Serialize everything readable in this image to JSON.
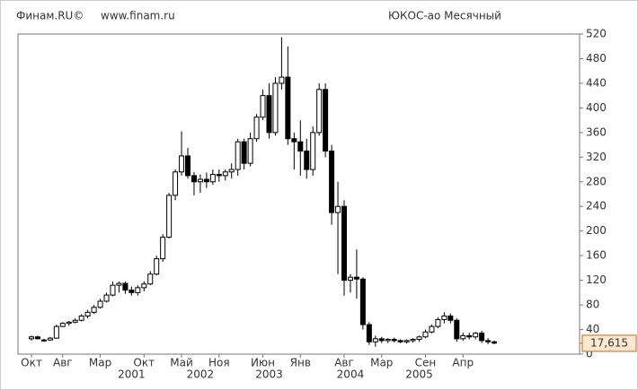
{
  "chart_data": {
    "type": "candlestick",
    "source": "Финам.RU©",
    "url": "www.finam.ru",
    "title": "ЮКОС-ао Месячный",
    "categories": [
      "Окт",
      null,
      null,
      null,
      null,
      "Авг",
      null,
      null,
      null,
      null,
      null,
      "Мар",
      null,
      null,
      null,
      null,
      null,
      null,
      "Окт",
      null,
      null,
      null,
      null,
      null,
      "Май",
      null,
      null,
      null,
      null,
      null,
      "Ноя",
      null,
      null,
      null,
      null,
      null,
      null,
      "Июн",
      null,
      null,
      null,
      null,
      null,
      "Янв",
      null,
      null,
      null,
      null,
      null,
      null,
      "Авг",
      null,
      null,
      null,
      null,
      null,
      "Мар",
      null,
      null,
      null,
      null,
      null,
      null,
      "Сен",
      null,
      null,
      null,
      null,
      null,
      "Апр",
      null,
      null,
      null,
      null,
      null
    ],
    "years": [
      null,
      null,
      null,
      null,
      null,
      null,
      null,
      null,
      null,
      null,
      null,
      null,
      null,
      null,
      null,
      null,
      "2001",
      null,
      null,
      null,
      null,
      null,
      null,
      null,
      null,
      null,
      null,
      "2002",
      null,
      null,
      null,
      null,
      null,
      null,
      null,
      null,
      null,
      null,
      "2003",
      null,
      null,
      null,
      null,
      null,
      null,
      null,
      null,
      null,
      null,
      null,
      null,
      "2004",
      null,
      null,
      null,
      null,
      null,
      null,
      null,
      null,
      null,
      null,
      "2005",
      null,
      null,
      null,
      null,
      null,
      null,
      null,
      null,
      null,
      null,
      null,
      null,
      null
    ],
    "open": [
      25,
      28,
      22,
      23,
      26,
      45,
      50,
      52,
      55,
      62,
      68,
      76,
      86,
      96,
      112,
      115,
      104,
      100,
      108,
      114,
      130,
      155,
      190,
      258,
      296,
      322,
      290,
      280,
      284,
      280,
      292,
      290,
      296,
      300,
      345,
      310,
      350,
      385,
      420,
      360,
      440,
      450,
      350,
      345,
      330,
      300,
      360,
      430,
      330,
      230,
      240,
      120,
      125,
      122,
      48,
      20,
      25,
      22,
      24,
      22,
      20,
      22,
      24,
      28,
      36,
      45,
      56,
      62,
      55,
      25,
      30,
      28,
      34,
      22,
      20
    ],
    "high": [
      30,
      30,
      25,
      28,
      48,
      52,
      54,
      58,
      65,
      72,
      80,
      90,
      100,
      118,
      118,
      118,
      110,
      112,
      118,
      135,
      160,
      195,
      262,
      300,
      362,
      335,
      296,
      292,
      295,
      300,
      300,
      300,
      310,
      350,
      350,
      360,
      390,
      430,
      440,
      450,
      515,
      500,
      360,
      380,
      350,
      370,
      440,
      440,
      340,
      280,
      250,
      130,
      170,
      125,
      52,
      30,
      28,
      26,
      27,
      24,
      24,
      26,
      30,
      40,
      48,
      60,
      68,
      66,
      58,
      35,
      35,
      36,
      38,
      26,
      22
    ],
    "low": [
      22,
      24,
      20,
      22,
      25,
      44,
      46,
      50,
      53,
      58,
      65,
      74,
      84,
      94,
      100,
      98,
      95,
      95,
      102,
      112,
      128,
      150,
      188,
      250,
      290,
      285,
      258,
      262,
      270,
      275,
      280,
      282,
      285,
      290,
      300,
      305,
      345,
      380,
      350,
      355,
      430,
      340,
      300,
      290,
      285,
      290,
      355,
      320,
      210,
      130,
      95,
      100,
      90,
      40,
      15,
      12,
      18,
      18,
      19,
      18,
      17,
      19,
      20,
      26,
      34,
      42,
      50,
      50,
      20,
      22,
      24,
      24,
      18,
      16,
      16
    ],
    "close": [
      28,
      25,
      23,
      26,
      45,
      50,
      52,
      55,
      62,
      68,
      76,
      86,
      96,
      112,
      115,
      104,
      100,
      108,
      114,
      130,
      155,
      190,
      258,
      296,
      322,
      290,
      280,
      284,
      280,
      292,
      290,
      296,
      300,
      345,
      310,
      350,
      385,
      420,
      360,
      440,
      450,
      350,
      345,
      330,
      300,
      360,
      430,
      330,
      230,
      240,
      120,
      125,
      122,
      48,
      20,
      25,
      22,
      24,
      22,
      20,
      22,
      24,
      28,
      36,
      45,
      56,
      62,
      55,
      25,
      30,
      28,
      34,
      22,
      20,
      18
    ],
    "last_value": {
      "value": 17.615,
      "label": "17,615"
    },
    "ylim": [
      0,
      520
    ],
    "yticks": [
      0,
      40,
      80,
      120,
      160,
      200,
      240,
      280,
      320,
      360,
      400,
      440,
      480,
      520
    ]
  }
}
